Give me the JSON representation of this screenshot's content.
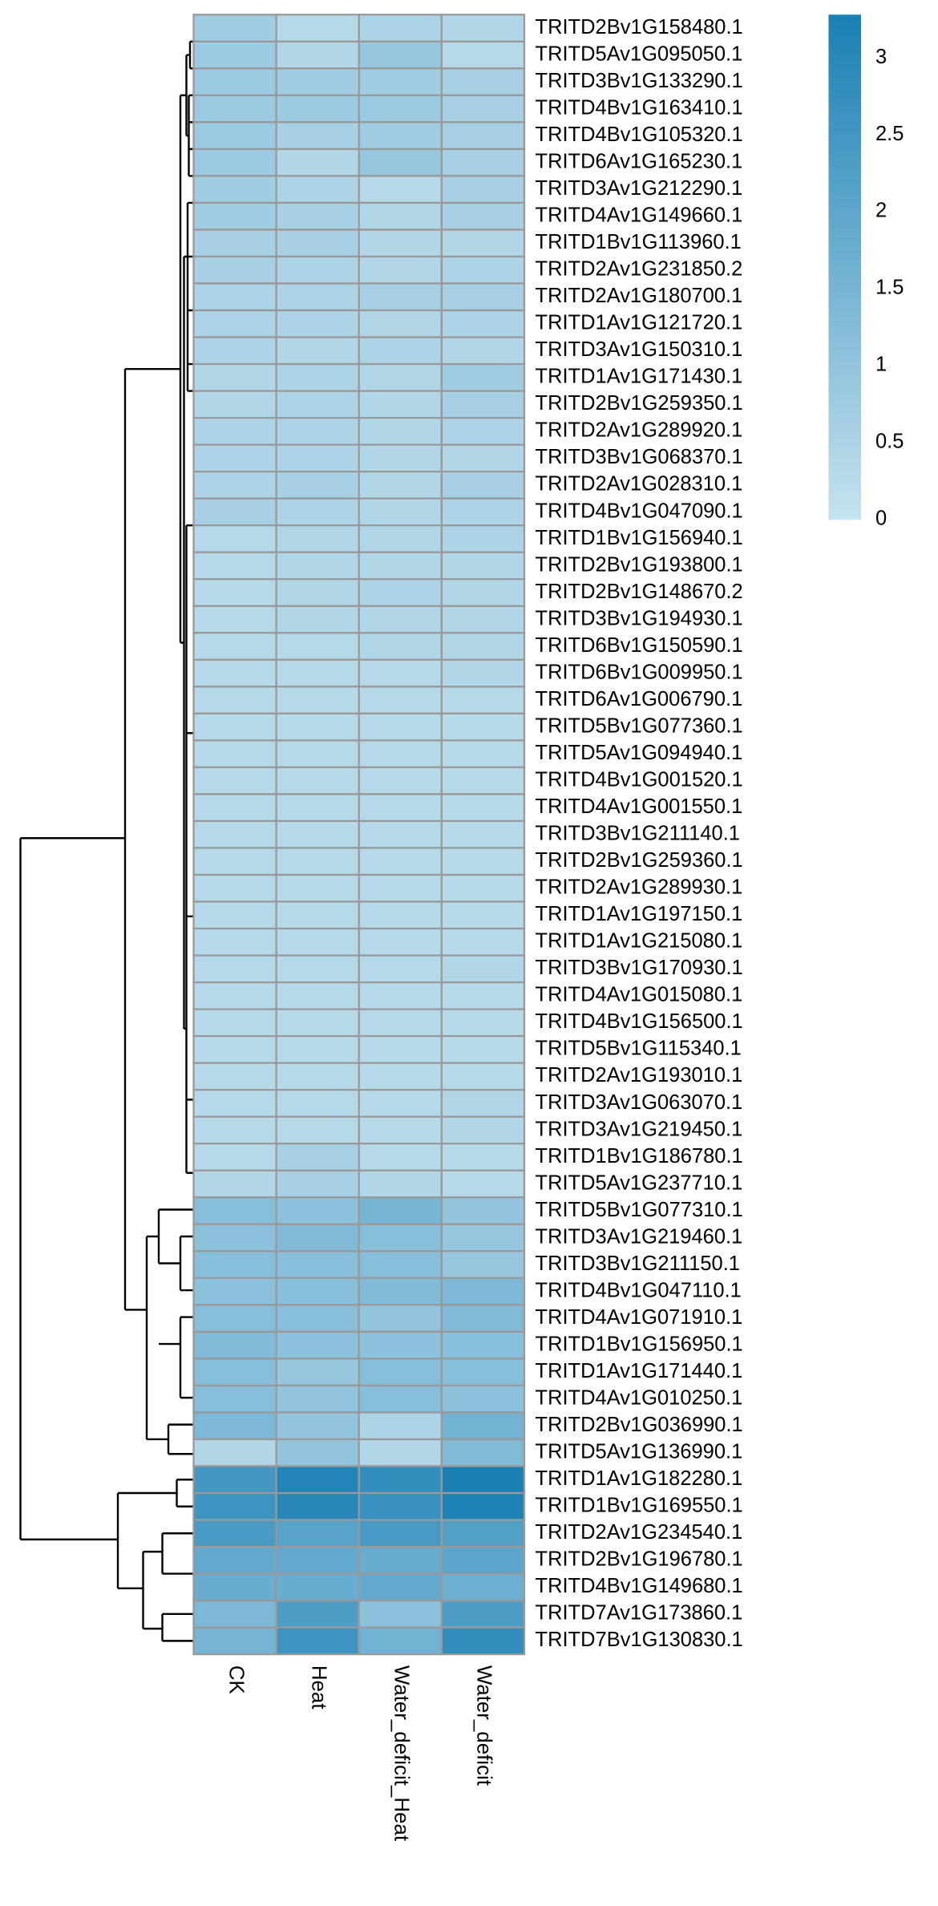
{
  "chart_data": {
    "type": "heatmap",
    "x": [
      "CK",
      "Heat",
      "Water_deficit_Heat",
      "Water_deficit"
    ],
    "y": [
      "TRITD2Bv1G158480.1",
      "TRITD5Av1G095050.1",
      "TRITD3Bv1G133290.1",
      "TRITD4Bv1G163410.1",
      "TRITD4Bv1G105320.1",
      "TRITD6Av1G165230.1",
      "TRITD3Av1G212290.1",
      "TRITD4Av1G149660.1",
      "TRITD1Bv1G113960.1",
      "TRITD2Av1G231850.2",
      "TRITD2Av1G180700.1",
      "TRITD1Av1G121720.1",
      "TRITD3Av1G150310.1",
      "TRITD1Av1G171430.1",
      "TRITD2Bv1G259350.1",
      "TRITD2Av1G289920.1",
      "TRITD3Bv1G068370.1",
      "TRITD2Av1G028310.1",
      "TRITD4Bv1G047090.1",
      "TRITD1Bv1G156940.1",
      "TRITD2Bv1G193800.1",
      "TRITD2Bv1G148670.2",
      "TRITD3Bv1G194930.1",
      "TRITD6Bv1G150590.1",
      "TRITD6Bv1G009950.1",
      "TRITD6Av1G006790.1",
      "TRITD5Bv1G077360.1",
      "TRITD5Av1G094940.1",
      "TRITD4Bv1G001520.1",
      "TRITD4Av1G001550.1",
      "TRITD3Bv1G211140.1",
      "TRITD2Bv1G259360.1",
      "TRITD2Av1G289930.1",
      "TRITD1Av1G197150.1",
      "TRITD1Av1G215080.1",
      "TRITD3Bv1G170930.1",
      "TRITD4Av1G015080.1",
      "TRITD4Bv1G156500.1",
      "TRITD5Bv1G115340.1",
      "TRITD2Av1G193010.1",
      "TRITD3Av1G063070.1",
      "TRITD3Av1G219450.1",
      "TRITD1Bv1G186780.1",
      "TRITD5Av1G237710.1",
      "TRITD5Bv1G077310.1",
      "TRITD3Av1G219460.1",
      "TRITD3Bv1G211150.1",
      "TRITD4Bv1G047110.1",
      "TRITD4Av1G071910.1",
      "TRITD1Bv1G156950.1",
      "TRITD1Av1G171440.1",
      "TRITD4Av1G010250.1",
      "TRITD2Bv1G036990.1",
      "TRITD5Av1G136990.1",
      "TRITD1Av1G182280.1",
      "TRITD1Bv1G169550.1",
      "TRITD2Av1G234540.1",
      "TRITD2Bv1G196780.1",
      "TRITD4Bv1G149680.1",
      "TRITD7Av1G173860.1",
      "TRITD7Bv1G130830.1"
    ],
    "values": [
      [
        0.7,
        0.3,
        0.5,
        0.4
      ],
      [
        0.8,
        0.4,
        0.9,
        0.3
      ],
      [
        0.8,
        0.7,
        0.7,
        0.6
      ],
      [
        0.8,
        0.8,
        0.8,
        0.6
      ],
      [
        0.8,
        0.6,
        0.7,
        0.6
      ],
      [
        0.8,
        0.4,
        0.9,
        0.6
      ],
      [
        0.7,
        0.5,
        0.3,
        0.6
      ],
      [
        0.7,
        0.6,
        0.4,
        0.6
      ],
      [
        0.6,
        0.6,
        0.4,
        0.4
      ],
      [
        0.6,
        0.5,
        0.4,
        0.5
      ],
      [
        0.5,
        0.5,
        0.6,
        0.6
      ],
      [
        0.5,
        0.5,
        0.4,
        0.5
      ],
      [
        0.5,
        0.4,
        0.5,
        0.4
      ],
      [
        0.4,
        0.5,
        0.4,
        0.7
      ],
      [
        0.4,
        0.5,
        0.4,
        0.6
      ],
      [
        0.5,
        0.5,
        0.4,
        0.5
      ],
      [
        0.5,
        0.5,
        0.4,
        0.4
      ],
      [
        0.5,
        0.6,
        0.4,
        0.6
      ],
      [
        0.6,
        0.5,
        0.4,
        0.5
      ],
      [
        0.3,
        0.4,
        0.4,
        0.5
      ],
      [
        0.3,
        0.4,
        0.4,
        0.4
      ],
      [
        0.3,
        0.4,
        0.5,
        0.4
      ],
      [
        0.3,
        0.4,
        0.4,
        0.4
      ],
      [
        0.3,
        0.3,
        0.4,
        0.4
      ],
      [
        0.3,
        0.3,
        0.3,
        0.4
      ],
      [
        0.3,
        0.3,
        0.3,
        0.3
      ],
      [
        0.3,
        0.3,
        0.3,
        0.3
      ],
      [
        0.3,
        0.3,
        0.3,
        0.3
      ],
      [
        0.3,
        0.3,
        0.3,
        0.3
      ],
      [
        0.3,
        0.3,
        0.3,
        0.3
      ],
      [
        0.3,
        0.3,
        0.3,
        0.3
      ],
      [
        0.3,
        0.3,
        0.3,
        0.3
      ],
      [
        0.3,
        0.3,
        0.3,
        0.3
      ],
      [
        0.3,
        0.3,
        0.3,
        0.3
      ],
      [
        0.3,
        0.3,
        0.3,
        0.3
      ],
      [
        0.3,
        0.3,
        0.3,
        0.4
      ],
      [
        0.3,
        0.3,
        0.3,
        0.3
      ],
      [
        0.3,
        0.3,
        0.3,
        0.3
      ],
      [
        0.3,
        0.3,
        0.3,
        0.3
      ],
      [
        0.3,
        0.3,
        0.3,
        0.3
      ],
      [
        0.3,
        0.3,
        0.3,
        0.4
      ],
      [
        0.3,
        0.3,
        0.3,
        0.4
      ],
      [
        0.3,
        0.6,
        0.3,
        0.3
      ],
      [
        0.4,
        0.6,
        0.4,
        0.3
      ],
      [
        1.2,
        1.1,
        1.5,
        1.0
      ],
      [
        1.1,
        1.3,
        1.2,
        0.9
      ],
      [
        1.2,
        1.2,
        1.2,
        0.9
      ],
      [
        1.1,
        1.2,
        1.3,
        1.4
      ],
      [
        1.2,
        1.2,
        1.0,
        1.3
      ],
      [
        1.3,
        1.1,
        1.1,
        1.2
      ],
      [
        1.2,
        0.9,
        1.2,
        1.2
      ],
      [
        1.2,
        1.0,
        1.2,
        1.1
      ],
      [
        1.4,
        1.0,
        0.5,
        1.6
      ],
      [
        0.4,
        1.0,
        0.4,
        1.3
      ],
      [
        2.5,
        3.1,
        2.8,
        3.3
      ],
      [
        2.6,
        3.0,
        2.7,
        3.2
      ],
      [
        2.4,
        2.1,
        2.4,
        2.2
      ],
      [
        1.9,
        1.9,
        1.8,
        2.0
      ],
      [
        1.8,
        1.8,
        1.9,
        1.7
      ],
      [
        1.4,
        2.3,
        1.1,
        2.3
      ],
      [
        1.5,
        2.6,
        1.6,
        2.8
      ]
    ],
    "zlim": [
      0,
      3.28
    ],
    "zticks": [
      0,
      0.5,
      1,
      1.5,
      2,
      2.5,
      3
    ],
    "colors": [
      "#c6e2ef",
      "#1a80b4"
    ],
    "cell_border": "#999999"
  }
}
